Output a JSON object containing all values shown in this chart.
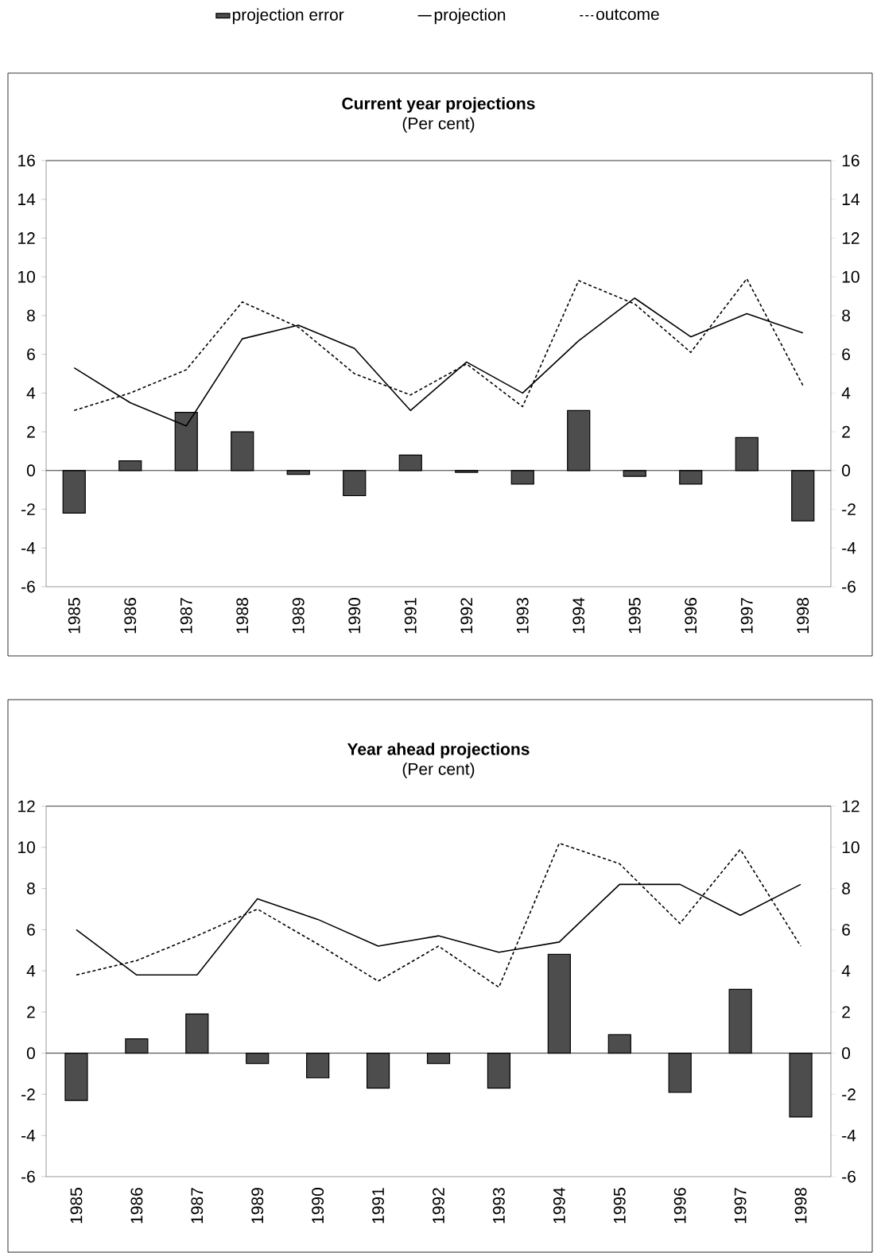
{
  "chart_data": [
    {
      "type": "bar",
      "title": "Current year projections",
      "subtitle": "(Per cent)",
      "categories": [
        "1985",
        "1986",
        "1987",
        "1988",
        "1989",
        "1990",
        "1991",
        "1992",
        "1993",
        "1994",
        "1995",
        "1996",
        "1997",
        "1998"
      ],
      "series": [
        {
          "name": "projection error",
          "color": "#4d4d4d",
          "values": [
            -2.2,
            0.5,
            3.0,
            2.0,
            -0.2,
            -1.3,
            0.8,
            -0.1,
            -0.7,
            3.1,
            -0.3,
            -0.7,
            1.7,
            -2.6
          ]
        },
        {
          "name": "projection",
          "type": "line",
          "color": "#000000",
          "line_style": "solid",
          "values": [
            5.3,
            3.5,
            2.3,
            6.8,
            7.5,
            6.3,
            3.1,
            5.6,
            4.0,
            6.7,
            8.9,
            6.9,
            8.1,
            7.1
          ]
        },
        {
          "name": "outcome",
          "type": "line",
          "color": "#000000",
          "line_style": "dashed",
          "values": [
            3.1,
            4.0,
            5.2,
            8.7,
            7.4,
            5.0,
            3.9,
            5.5,
            3.3,
            9.8,
            8.6,
            6.1,
            9.9,
            4.4
          ]
        }
      ],
      "ylim": [
        -6,
        16
      ],
      "yticks": [
        -6,
        -4,
        -2,
        0,
        2,
        4,
        6,
        8,
        10,
        12,
        14,
        16
      ],
      "y2lim": [
        -6,
        16
      ],
      "y2ticks": [
        -6,
        -4,
        -2,
        0,
        2,
        4,
        6,
        8,
        10,
        12,
        14,
        16
      ],
      "legend": "top"
    },
    {
      "type": "bar",
      "title": "Year ahead projections",
      "subtitle": "(Per cent)",
      "categories": [
        "1985",
        "1986",
        "1987",
        "1989",
        "1990",
        "1991",
        "1992",
        "1993",
        "1994",
        "1995",
        "1996",
        "1997",
        "1998"
      ],
      "series": [
        {
          "color": "#4d4d4d",
          "values": [
            -2.3,
            0.7,
            1.9,
            -0.5,
            -1.2,
            -1.7,
            -0.5,
            -1.7,
            4.8,
            0.9,
            -1.9,
            3.1,
            -3.1
          ]
        },
        {
          "type": "line",
          "color": "#000000",
          "line_style": "solid",
          "values": [
            6.0,
            3.8,
            3.8,
            7.5,
            6.5,
            5.2,
            5.7,
            4.9,
            5.4,
            8.2,
            8.2,
            6.7,
            8.2
          ]
        },
        {
          "type": "line",
          "color": "#000000",
          "line_style": "dashed",
          "values": [
            3.8,
            4.5,
            5.7,
            7.0,
            5.3,
            3.5,
            5.2,
            3.2,
            10.2,
            9.2,
            6.3,
            9.9,
            5.2
          ]
        }
      ],
      "ylim": [
        -6,
        12
      ],
      "yticks": [
        -6,
        -4,
        -2,
        0,
        2,
        4,
        6,
        8,
        10,
        12
      ],
      "y2lim": [
        -6,
        12
      ],
      "y2ticks": [
        -6,
        -4,
        -2,
        0,
        2,
        4,
        6,
        8,
        10,
        12
      ]
    }
  ]
}
